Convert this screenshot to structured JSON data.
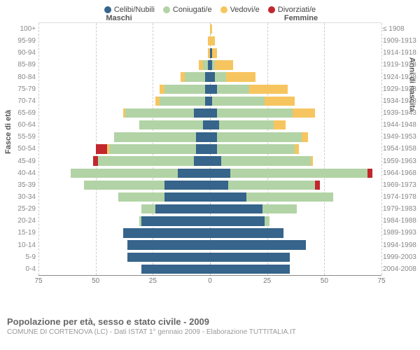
{
  "legend": [
    {
      "label": "Celibi/Nubili",
      "color": "#36648b"
    },
    {
      "label": "Coniugati/e",
      "color": "#b2d3a5"
    },
    {
      "label": "Vedovi/e",
      "color": "#f7c55f"
    },
    {
      "label": "Divorziati/e",
      "color": "#c1272d"
    }
  ],
  "headers": {
    "male": "Maschi",
    "female": "Femmine"
  },
  "axis_left_label": "Fasce di età",
  "axis_right_label": "Anni di nascita",
  "x_axis": {
    "max": 75,
    "ticks": [
      75,
      50,
      25,
      0,
      25,
      50,
      75
    ]
  },
  "rows": [
    {
      "age": "100+",
      "birth": "≤ 1908",
      "m": {
        "c": 0,
        "co": 0,
        "v": 0,
        "d": 0
      },
      "f": {
        "c": 0,
        "co": 0,
        "v": 1,
        "d": 0
      }
    },
    {
      "age": "95-99",
      "birth": "1909-1913",
      "m": {
        "c": 0,
        "co": 0,
        "v": 1,
        "d": 0
      },
      "f": {
        "c": 0,
        "co": 0,
        "v": 2,
        "d": 0
      }
    },
    {
      "age": "90-94",
      "birth": "1914-1918",
      "m": {
        "c": 0,
        "co": 0,
        "v": 1,
        "d": 0
      },
      "f": {
        "c": 1,
        "co": 0,
        "v": 2,
        "d": 0
      }
    },
    {
      "age": "85-89",
      "birth": "1919-1923",
      "m": {
        "c": 1,
        "co": 2,
        "v": 2,
        "d": 0
      },
      "f": {
        "c": 1,
        "co": 1,
        "v": 8,
        "d": 0
      }
    },
    {
      "age": "80-84",
      "birth": "1924-1928",
      "m": {
        "c": 2,
        "co": 9,
        "v": 2,
        "d": 0
      },
      "f": {
        "c": 2,
        "co": 5,
        "v": 13,
        "d": 0
      }
    },
    {
      "age": "75-79",
      "birth": "1929-1933",
      "m": {
        "c": 2,
        "co": 18,
        "v": 2,
        "d": 0
      },
      "f": {
        "c": 3,
        "co": 14,
        "v": 17,
        "d": 0
      }
    },
    {
      "age": "70-74",
      "birth": "1934-1938",
      "m": {
        "c": 2,
        "co": 20,
        "v": 2,
        "d": 0
      },
      "f": {
        "c": 1,
        "co": 23,
        "v": 13,
        "d": 0
      }
    },
    {
      "age": "65-69",
      "birth": "1939-1943",
      "m": {
        "c": 7,
        "co": 30,
        "v": 1,
        "d": 0
      },
      "f": {
        "c": 3,
        "co": 33,
        "v": 10,
        "d": 0
      }
    },
    {
      "age": "60-64",
      "birth": "1944-1948",
      "m": {
        "c": 3,
        "co": 28,
        "v": 0,
        "d": 0
      },
      "f": {
        "c": 4,
        "co": 24,
        "v": 5,
        "d": 0
      }
    },
    {
      "age": "55-59",
      "birth": "1949-1953",
      "m": {
        "c": 6,
        "co": 36,
        "v": 0,
        "d": 0
      },
      "f": {
        "c": 3,
        "co": 37,
        "v": 3,
        "d": 0
      }
    },
    {
      "age": "50-54",
      "birth": "1954-1958",
      "m": {
        "c": 6,
        "co": 38,
        "v": 1,
        "d": 5
      },
      "f": {
        "c": 3,
        "co": 34,
        "v": 2,
        "d": 0
      }
    },
    {
      "age": "45-49",
      "birth": "1959-1963",
      "m": {
        "c": 7,
        "co": 42,
        "v": 0,
        "d": 2
      },
      "f": {
        "c": 5,
        "co": 39,
        "v": 1,
        "d": 0
      }
    },
    {
      "age": "40-44",
      "birth": "1964-1968",
      "m": {
        "c": 14,
        "co": 47,
        "v": 0,
        "d": 0
      },
      "f": {
        "c": 9,
        "co": 60,
        "v": 0,
        "d": 2
      }
    },
    {
      "age": "35-39",
      "birth": "1969-1973",
      "m": {
        "c": 20,
        "co": 35,
        "v": 0,
        "d": 0
      },
      "f": {
        "c": 8,
        "co": 38,
        "v": 0,
        "d": 2
      }
    },
    {
      "age": "30-34",
      "birth": "1974-1978",
      "m": {
        "c": 20,
        "co": 20,
        "v": 0,
        "d": 0
      },
      "f": {
        "c": 16,
        "co": 38,
        "v": 0,
        "d": 0
      }
    },
    {
      "age": "25-29",
      "birth": "1979-1983",
      "m": {
        "c": 24,
        "co": 6,
        "v": 0,
        "d": 0
      },
      "f": {
        "c": 23,
        "co": 15,
        "v": 0,
        "d": 0
      }
    },
    {
      "age": "20-24",
      "birth": "1984-1988",
      "m": {
        "c": 30,
        "co": 1,
        "v": 0,
        "d": 0
      },
      "f": {
        "c": 24,
        "co": 2,
        "v": 0,
        "d": 0
      }
    },
    {
      "age": "15-19",
      "birth": "1989-1993",
      "m": {
        "c": 38,
        "co": 0,
        "v": 0,
        "d": 0
      },
      "f": {
        "c": 32,
        "co": 0,
        "v": 0,
        "d": 0
      }
    },
    {
      "age": "10-14",
      "birth": "1994-1998",
      "m": {
        "c": 36,
        "co": 0,
        "v": 0,
        "d": 0
      },
      "f": {
        "c": 42,
        "co": 0,
        "v": 0,
        "d": 0
      }
    },
    {
      "age": "5-9",
      "birth": "1999-2003",
      "m": {
        "c": 36,
        "co": 0,
        "v": 0,
        "d": 0
      },
      "f": {
        "c": 35,
        "co": 0,
        "v": 0,
        "d": 0
      }
    },
    {
      "age": "0-4",
      "birth": "2004-2008",
      "m": {
        "c": 30,
        "co": 0,
        "v": 0,
        "d": 0
      },
      "f": {
        "c": 35,
        "co": 0,
        "v": 0,
        "d": 0
      }
    }
  ],
  "footer": {
    "title": "Popolazione per età, sesso e stato civile - 2009",
    "subtitle": "COMUNE DI CORTENOVA (LC) - Dati ISTAT 1° gennaio 2009 - Elaborazione TUTTITALIA.IT"
  },
  "grid_color": "#cccccc"
}
